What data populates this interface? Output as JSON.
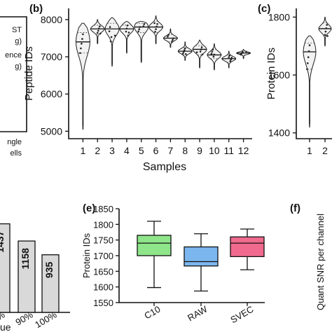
{
  "panels": {
    "b": "(b)",
    "c": "(c)",
    "e": "(e)",
    "f": "(f)"
  },
  "legend_fragments": [
    "ST",
    "g)",
    "ence",
    "g)",
    "ngle",
    "ells"
  ],
  "chart_data": [
    {
      "id": "b",
      "type": "violin",
      "xlabel": "Samples",
      "ylabel": "Peptide IDs",
      "categories": [
        "1",
        "2",
        "3",
        "4",
        "5",
        "6",
        "7",
        "8",
        "9",
        "10",
        "11",
        "12"
      ],
      "ylim": [
        4800,
        8300
      ],
      "yticks": [
        5000,
        6000,
        7000,
        8000
      ],
      "series": [
        {
          "sample": "1",
          "min": 5050,
          "max": 7900,
          "median": 7400,
          "q1": 7100,
          "q3": 7650
        },
        {
          "sample": "2",
          "min": 7350,
          "max": 8000,
          "median": 7750,
          "q1": 7600,
          "q3": 7850
        },
        {
          "sample": "3",
          "min": 6750,
          "max": 8050,
          "median": 7750,
          "q1": 7400,
          "q3": 7900
        },
        {
          "sample": "4",
          "min": 7100,
          "max": 7950,
          "median": 7750,
          "q1": 7500,
          "q3": 7850
        },
        {
          "sample": "5",
          "min": 6850,
          "max": 7950,
          "median": 7800,
          "q1": 7650,
          "q3": 7900
        },
        {
          "sample": "6",
          "min": 7350,
          "max": 8100,
          "median": 7800,
          "q1": 7650,
          "q3": 7950
        },
        {
          "sample": "7",
          "min": 7250,
          "max": 7750,
          "median": 7500,
          "q1": 7400,
          "q3": 7600
        },
        {
          "sample": "8",
          "min": 6900,
          "max": 7400,
          "median": 7150,
          "q1": 7050,
          "q3": 7250
        },
        {
          "sample": "9",
          "min": 6700,
          "max": 7450,
          "median": 7200,
          "q1": 7050,
          "q3": 7300
        },
        {
          "sample": "10",
          "min": 6650,
          "max": 7350,
          "median": 7050,
          "q1": 6950,
          "q3": 7200
        },
        {
          "sample": "11",
          "min": 6700,
          "max": 7150,
          "median": 6950,
          "q1": 6850,
          "q3": 7050
        },
        {
          "sample": "12",
          "min": 6950,
          "max": 7200,
          "median": 7100,
          "q1": 7050,
          "q3": 7150
        }
      ]
    },
    {
      "id": "c",
      "type": "violin",
      "xlabel": "",
      "ylabel": "Protein IDs",
      "categories": [
        "1",
        "2"
      ],
      "ylim": [
        1380,
        1830
      ],
      "yticks": [
        1400,
        1600,
        1800
      ],
      "series": [
        {
          "sample": "1",
          "min": 1420,
          "max": 1735,
          "median": 1680,
          "q1": 1620,
          "q3": 1710
        },
        {
          "sample": "2",
          "min": 1700,
          "max": 1800,
          "median": 1760,
          "q1": 1730,
          "q3": 1780
        }
      ]
    },
    {
      "id": "d",
      "type": "bar",
      "categories": [
        "",
        "90%",
        "100%"
      ],
      "values": [
        1437,
        1158,
        935
      ],
      "value_labels": [
        "1437",
        "1158",
        "935"
      ],
      "xlabel_fragment": "ue",
      "tick_fragment": "%"
    },
    {
      "id": "e",
      "type": "box",
      "ylabel": "Protein IDs",
      "categories": [
        "C10",
        "RAW",
        "SVEC"
      ],
      "ylim": [
        1550,
        1850
      ],
      "yticks": [
        1550,
        1600,
        1650,
        1700,
        1750,
        1800,
        1850
      ],
      "colors": [
        "#8ee58a",
        "#7cb6ee",
        "#f06a8e"
      ],
      "series": [
        {
          "name": "C10",
          "min": 1598,
          "q1": 1700,
          "median": 1740,
          "q3": 1765,
          "max": 1810
        },
        {
          "name": "RAW",
          "min": 1587,
          "q1": 1667,
          "median": 1681,
          "q3": 1728,
          "max": 1770
        },
        {
          "name": "SVEC",
          "min": 1655,
          "q1": 1697,
          "median": 1740,
          "q3": 1760,
          "max": 1785
        }
      ]
    },
    {
      "id": "f",
      "type": "other",
      "ylabel": "Quant SNR per channel"
    }
  ]
}
